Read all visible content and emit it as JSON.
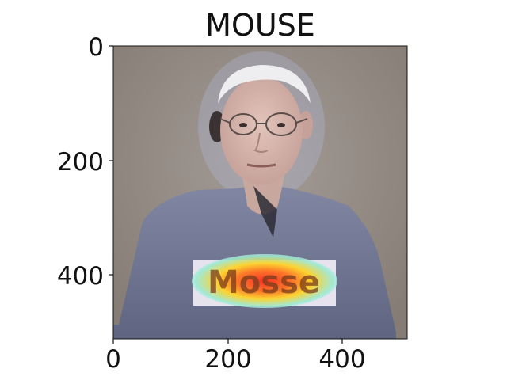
{
  "figure": {
    "title": "MOUSE",
    "x_ticks": [
      "0",
      "200",
      "400"
    ],
    "y_ticks": [
      "0",
      "200",
      "400"
    ],
    "x_tick_values": [
      0,
      200,
      400
    ],
    "y_tick_values": [
      0,
      200,
      400
    ],
    "image_extent": {
      "width": 512,
      "height": 512
    },
    "image_subject": "elderly-man-tshirt-heatmap",
    "shirt_text": "Mosse",
    "colors": {
      "background": "#8f877f",
      "shirt": "#767c95",
      "skin": "#d9b9b0",
      "heat_red": "#ff2a10",
      "heat_yellow": "#ffe21a",
      "heat_cyan": "#6fe0e8"
    }
  }
}
